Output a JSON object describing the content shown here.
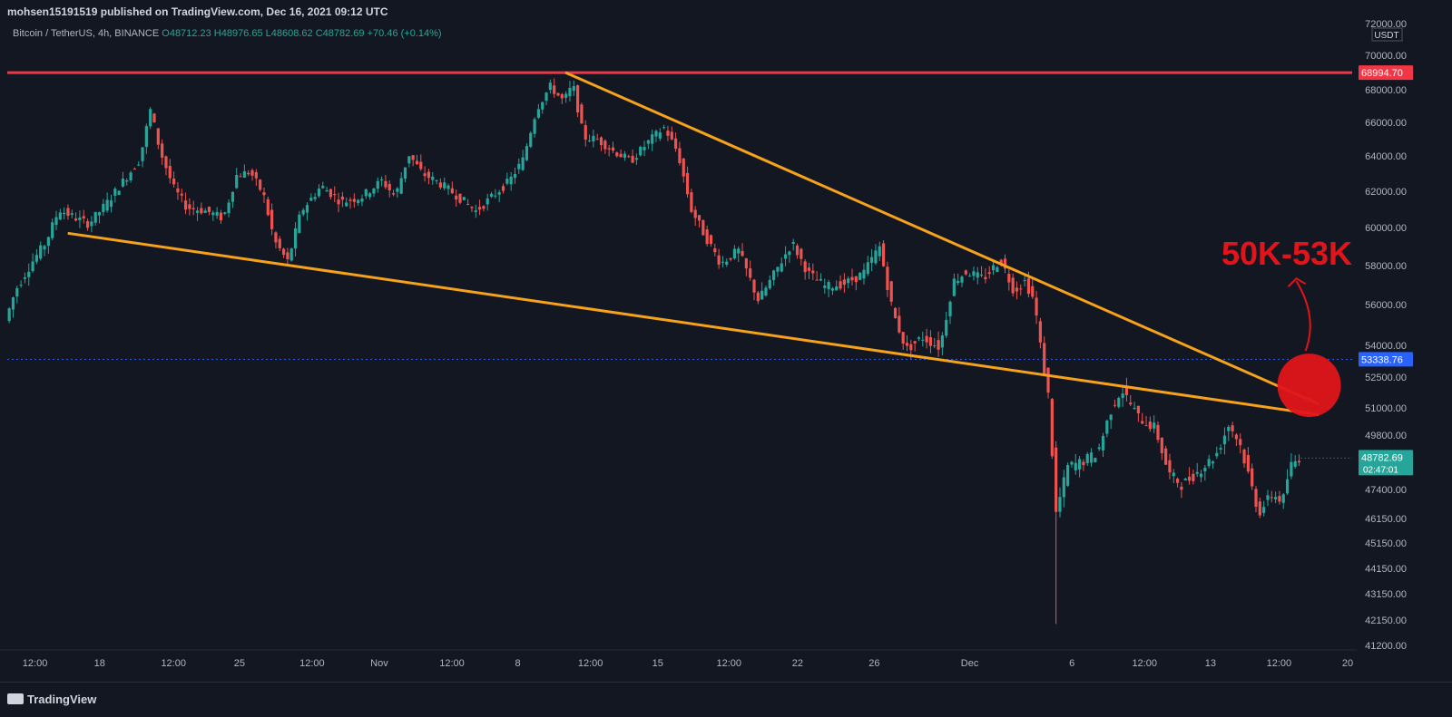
{
  "header": {
    "published": "mohsen15191519 published on TradingView.com, Dec 16, 2021 09:12 UTC"
  },
  "legend": {
    "symbol": "Bitcoin / TetherUS, 4h, BINANCE",
    "open": "O48712.23",
    "high": "H48976.65",
    "low": "L48608.62",
    "close": "C48782.69",
    "change": "+70.46 (+0.14%)"
  },
  "brand": "TradingView",
  "colors": {
    "bg": "#131722",
    "up": "#26a69a",
    "down": "#ef5350",
    "resistance": "#f23645",
    "trendline": "#f7a21b",
    "current_price": "#26a69a",
    "marker_price": "#2962ff"
  },
  "chart_data": {
    "type": "candlestick",
    "symbol": "Bitcoin / TetherUS",
    "interval": "4h",
    "exchange": "BINANCE",
    "currency": "USDT",
    "x_ticks": [
      "12:00",
      "18",
      "12:00",
      "25",
      "12:00",
      "Nov",
      "12:00",
      "8",
      "12:00",
      "15",
      "12:00",
      "22",
      "26",
      "Dec",
      "6",
      "12:00",
      "13",
      "12:00",
      "20"
    ],
    "y_ticks": [
      72000,
      70000,
      68000,
      66000,
      64000,
      62000,
      60000,
      58000,
      56000,
      54000,
      52500,
      51000,
      49800,
      47400,
      46150,
      45150,
      44150,
      43150,
      42150,
      41200
    ],
    "y_tick_labels": [
      "72000.00",
      "70000.00",
      "68000.00",
      "66000.00",
      "64000.00",
      "62000.00",
      "60000.00",
      "58000.00",
      "56000.00",
      "54000.00",
      "52500.00",
      "51000.00",
      "49800.00",
      "47400.00",
      "46150.00",
      "45150.00",
      "44150.00",
      "43150.00",
      "42150.00",
      "41200.00"
    ],
    "price_path": [
      [
        0,
        55200
      ],
      [
        0.008,
        56800
      ],
      [
        0.02,
        58200
      ],
      [
        0.03,
        59200
      ],
      [
        0.04,
        61000
      ],
      [
        0.05,
        60600
      ],
      [
        0.062,
        60200
      ],
      [
        0.075,
        61300
      ],
      [
        0.09,
        62800
      ],
      [
        0.1,
        63800
      ],
      [
        0.108,
        66800
      ],
      [
        0.115,
        64300
      ],
      [
        0.125,
        62200
      ],
      [
        0.135,
        61100
      ],
      [
        0.15,
        60900
      ],
      [
        0.162,
        60500
      ],
      [
        0.172,
        62900
      ],
      [
        0.182,
        63100
      ],
      [
        0.192,
        61800
      ],
      [
        0.2,
        59300
      ],
      [
        0.21,
        58200
      ],
      [
        0.22,
        60900
      ],
      [
        0.235,
        62300
      ],
      [
        0.25,
        61400
      ],
      [
        0.265,
        61700
      ],
      [
        0.28,
        62600
      ],
      [
        0.29,
        61700
      ],
      [
        0.3,
        64100
      ],
      [
        0.31,
        63000
      ],
      [
        0.322,
        62500
      ],
      [
        0.335,
        61800
      ],
      [
        0.35,
        60900
      ],
      [
        0.362,
        61700
      ],
      [
        0.375,
        62600
      ],
      [
        0.385,
        63800
      ],
      [
        0.395,
        66800
      ],
      [
        0.405,
        68200
      ],
      [
        0.415,
        67300
      ],
      [
        0.422,
        68300
      ],
      [
        0.43,
        65100
      ],
      [
        0.44,
        65000
      ],
      [
        0.452,
        64300
      ],
      [
        0.465,
        63700
      ],
      [
        0.48,
        65000
      ],
      [
        0.49,
        65700
      ],
      [
        0.5,
        64200
      ],
      [
        0.51,
        61000
      ],
      [
        0.52,
        59600
      ],
      [
        0.532,
        58100
      ],
      [
        0.545,
        58800
      ],
      [
        0.56,
        56200
      ],
      [
        0.572,
        57600
      ],
      [
        0.585,
        59200
      ],
      [
        0.597,
        57600
      ],
      [
        0.61,
        56900
      ],
      [
        0.625,
        57100
      ],
      [
        0.638,
        57600
      ],
      [
        0.65,
        59000
      ],
      [
        0.66,
        55600
      ],
      [
        0.67,
        53800
      ],
      [
        0.682,
        54400
      ],
      [
        0.695,
        53900
      ],
      [
        0.705,
        57200
      ],
      [
        0.715,
        57700
      ],
      [
        0.727,
        57300
      ],
      [
        0.74,
        58300
      ],
      [
        0.75,
        56700
      ],
      [
        0.758,
        57200
      ],
      [
        0.765,
        56200
      ],
      [
        0.77,
        53800
      ],
      [
        0.776,
        51400
      ],
      [
        0.781,
        46300
      ],
      [
        0.79,
        48400
      ],
      [
        0.8,
        48600
      ],
      [
        0.812,
        49000
      ],
      [
        0.822,
        50900
      ],
      [
        0.83,
        51900
      ],
      [
        0.842,
        50600
      ],
      [
        0.855,
        50100
      ],
      [
        0.865,
        48100
      ],
      [
        0.875,
        47600
      ],
      [
        0.885,
        48100
      ],
      [
        0.9,
        48900
      ],
      [
        0.91,
        50300
      ],
      [
        0.918,
        49400
      ],
      [
        0.925,
        47900
      ],
      [
        0.932,
        46400
      ],
      [
        0.942,
        47200
      ],
      [
        0.95,
        46900
      ],
      [
        0.955,
        48400
      ],
      [
        0.962,
        48800
      ]
    ],
    "extreme_low_wick": {
      "x": 0.781,
      "low": 42000
    },
    "resistance": {
      "price": 68994.7,
      "label": "68994.70"
    },
    "current_price": {
      "price": 48782.69,
      "label": "48782.69",
      "countdown": "02:47:01"
    },
    "marker_price": {
      "price": 53338.76,
      "label": "53338.76"
    },
    "upper_trendline": [
      [
        0.415,
        69000
      ],
      [
        0.975,
        51200
      ]
    ],
    "lower_trendline": [
      [
        0.045,
        59700
      ],
      [
        0.975,
        50700
      ]
    ],
    "annotation": {
      "text": "50K-53K"
    }
  }
}
